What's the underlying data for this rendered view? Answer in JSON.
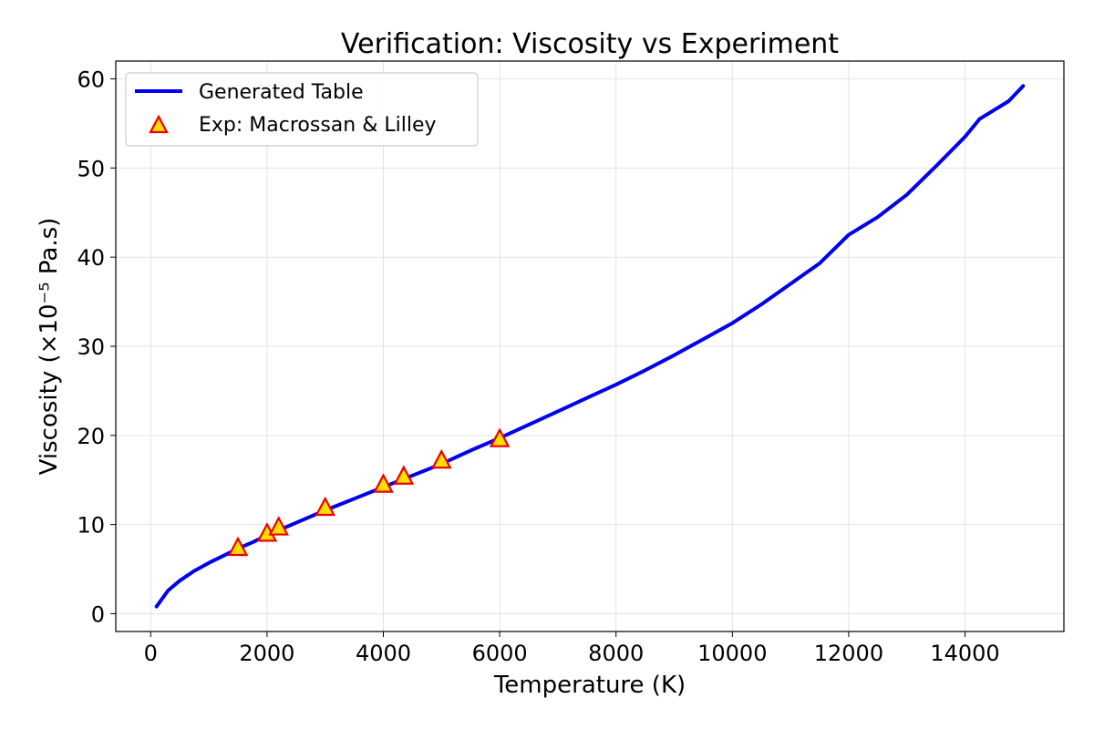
{
  "chart_data": {
    "type": "line",
    "title": "Verification: Viscosity vs Experiment",
    "xlabel": "Temperature (K)",
    "ylabel": "Viscosity (×10⁻⁵ Pa.s)",
    "xlim": [
      -600,
      15700
    ],
    "ylim": [
      -2,
      62
    ],
    "xticks": [
      0,
      2000,
      4000,
      6000,
      8000,
      10000,
      12000,
      14000
    ],
    "xtick_labels": [
      "0",
      "2000",
      "4000",
      "6000",
      "8000",
      "10000",
      "12000",
      "14000"
    ],
    "yticks": [
      0,
      10,
      20,
      30,
      40,
      50,
      60
    ],
    "ytick_labels": [
      "0",
      "10",
      "20",
      "30",
      "40",
      "50",
      "60"
    ],
    "grid": true,
    "legend_position": "top-left",
    "colors": {
      "line": "#0000ee",
      "marker_fill": "#ffdd00",
      "marker_edge": "#ee0000"
    },
    "series": [
      {
        "name": "Generated Table",
        "kind": "line",
        "x": [
          100,
          300,
          500,
          750,
          1000,
          1250,
          1500,
          1750,
          2000,
          2500,
          3000,
          3500,
          4000,
          4500,
          5000,
          5500,
          6000,
          6500,
          7000,
          7500,
          8000,
          8500,
          9000,
          9500,
          10000,
          10500,
          11000,
          11500,
          12000,
          12500,
          13000,
          13500,
          14000,
          14250,
          14500,
          14750,
          15000
        ],
        "y": [
          0.8,
          2.6,
          3.7,
          4.8,
          5.7,
          6.5,
          7.3,
          8.0,
          8.8,
          10.2,
          11.6,
          12.9,
          14.2,
          15.5,
          16.8,
          18.3,
          19.7,
          21.2,
          22.7,
          24.2,
          25.7,
          27.3,
          29.0,
          30.8,
          32.6,
          34.7,
          37.0,
          39.3,
          42.5,
          44.5,
          47.0,
          50.2,
          53.5,
          55.5,
          56.5,
          57.5,
          59.2
        ]
      },
      {
        "name": "Exp: Macrossan & Lilley",
        "kind": "scatter",
        "x": [
          1500,
          2000,
          2200,
          3000,
          4000,
          4350,
          5000,
          6000
        ],
        "y": [
          7.3,
          8.9,
          9.6,
          11.8,
          14.4,
          15.3,
          17.1,
          19.5
        ]
      }
    ]
  }
}
